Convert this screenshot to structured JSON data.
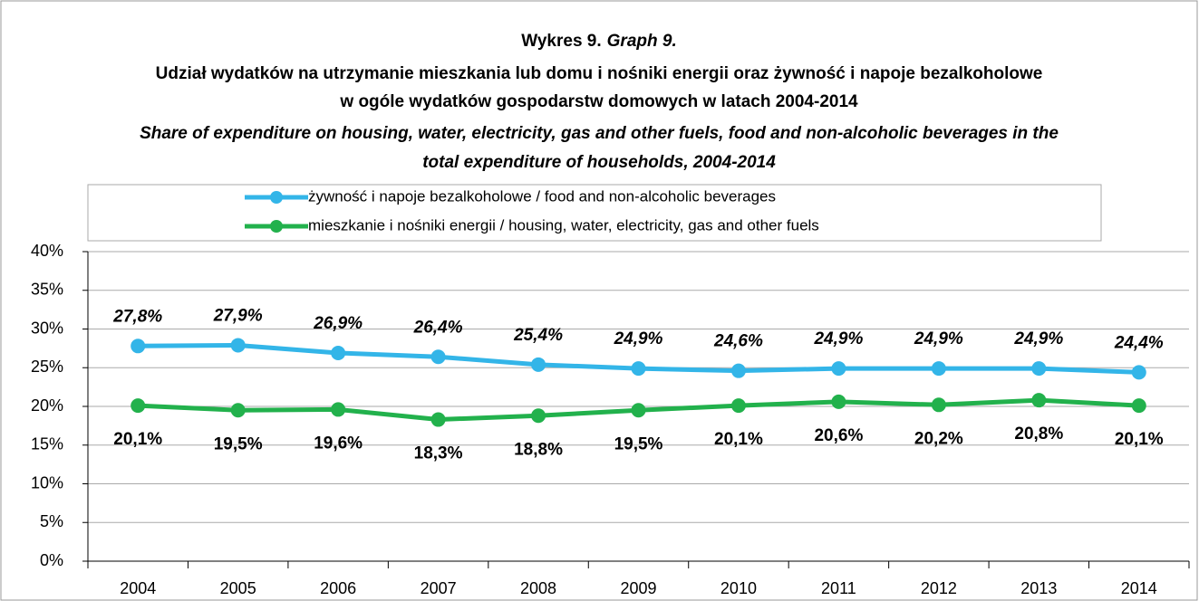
{
  "chart_data": {
    "type": "line",
    "title": "Wykres 9.",
    "title_en": "Graph 9.",
    "subtitle": [
      "Udział wydatków na utrzymanie mieszkania lub domu i nośniki energii oraz żywność i napoje bezalkoholowe",
      "w ogóle wydatków gospodarstw domowych w latach 2004-2014"
    ],
    "subtitle_en": [
      "Share of expenditure on housing, water, electricity, gas and other fuels, food and non-alcoholic beverages in the",
      "total expenditure of households, 2004-2014"
    ],
    "categories": [
      "2004",
      "2005",
      "2006",
      "2007",
      "2008",
      "2009",
      "2010",
      "2011",
      "2012",
      "2013",
      "2014"
    ],
    "series": [
      {
        "name": "żywność i napoje bezalkoholowe / food and non-alcoholic beverages",
        "color": "#33b5e8",
        "values": [
          27.8,
          27.9,
          26.9,
          26.4,
          25.4,
          24.9,
          24.6,
          24.9,
          24.9,
          24.9,
          24.4
        ],
        "value_labels": [
          "27,8%",
          "27,9%",
          "26,9%",
          "26,4%",
          "25,4%",
          "24,9%",
          "24,6%",
          "24,9%",
          "24,9%",
          "24,9%",
          "24,4%"
        ]
      },
      {
        "name": "mieszkanie i nośniki energii / housing, water, electricity, gas and other fuels",
        "color": "#22b14c",
        "values": [
          20.1,
          19.5,
          19.6,
          18.3,
          18.8,
          19.5,
          20.1,
          20.6,
          20.2,
          20.8,
          20.1
        ],
        "value_labels": [
          "20,1%",
          "19,5%",
          "19,6%",
          "18,3%",
          "18,8%",
          "19,5%",
          "20,1%",
          "20,6%",
          "20,2%",
          "20,8%",
          "20,1%"
        ]
      }
    ],
    "ylim": [
      0,
      40
    ],
    "yticks": [
      {
        "value": 0,
        "label": "0%"
      },
      {
        "value": 5,
        "label": "5%"
      },
      {
        "value": 10,
        "label": "10%"
      },
      {
        "value": 15,
        "label": "15%"
      },
      {
        "value": 20,
        "label": "20%"
      },
      {
        "value": 25,
        "label": "25%"
      },
      {
        "value": 30,
        "label": "30%"
      },
      {
        "value": 35,
        "label": "35%"
      },
      {
        "value": 40,
        "label": "40%"
      }
    ],
    "grid": true,
    "legend": "top"
  }
}
